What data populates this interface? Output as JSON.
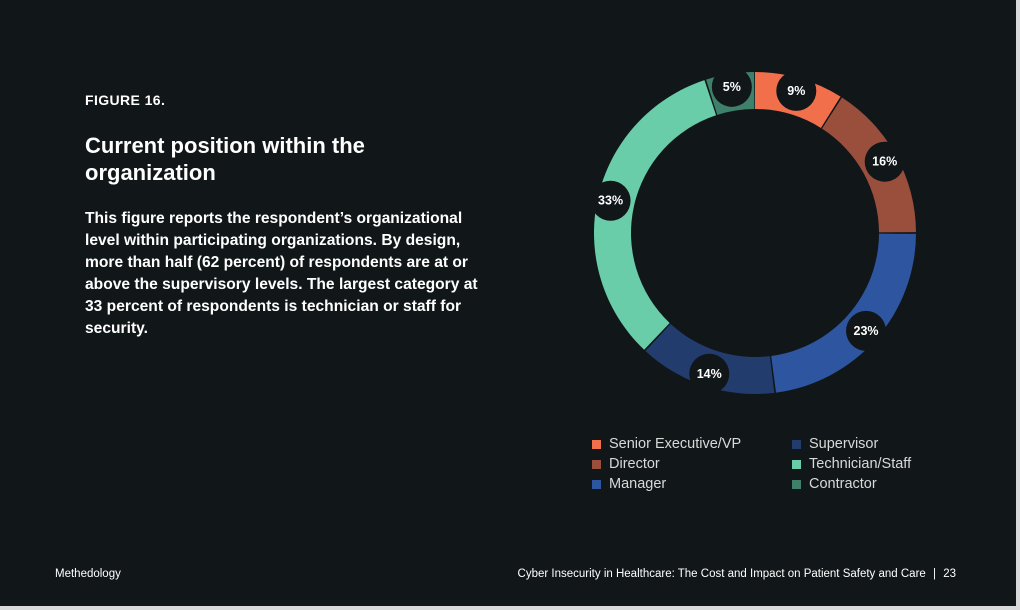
{
  "page": {
    "figure_label": "FIGURE 16.",
    "title": "Current position within the organization",
    "description": "This figure reports the respondent’s organizational level within participating organizations. By design, more than half (62 percent) of respondents are at or above the supervisory levels. The largest category at 33 percent of respondents is technician or staff for security."
  },
  "footer": {
    "left": "Methedology",
    "document_title": "Cyber Insecurity in Healthcare: The Cost and Impact on Patient Safety and Care",
    "separator": "|",
    "page_number": "23"
  },
  "colors": {
    "background": "#111619",
    "text": "#ffffff",
    "legend_text": "#d9d9d9",
    "senior_executive": "#f26f4c",
    "director": "#9a4f3d",
    "manager": "#2e55a0",
    "supervisor": "#223c6d",
    "technician_staff": "#69cda9",
    "contractor": "#3f806a"
  },
  "chart_data": {
    "type": "pie",
    "title": "",
    "categories": [
      "Senior Executive/VP",
      "Director",
      "Manager",
      "Supervisor",
      "Technician/Staff",
      "Contractor"
    ],
    "values": [
      9,
      16,
      23,
      14,
      33,
      5
    ],
    "value_labels": [
      "9%",
      "16%",
      "23%",
      "14%",
      "33%",
      "5%"
    ],
    "series_colors": [
      "#f26f4c",
      "#9a4f3d",
      "#2e55a0",
      "#223c6d",
      "#69cda9",
      "#3f806a"
    ],
    "legend_placement": "bottom",
    "legend_columns": [
      [
        "Senior Executive/VP",
        "Director",
        "Manager"
      ],
      [
        "Supervisor",
        "Technician/Staff",
        "Contractor"
      ]
    ],
    "donut": true
  }
}
